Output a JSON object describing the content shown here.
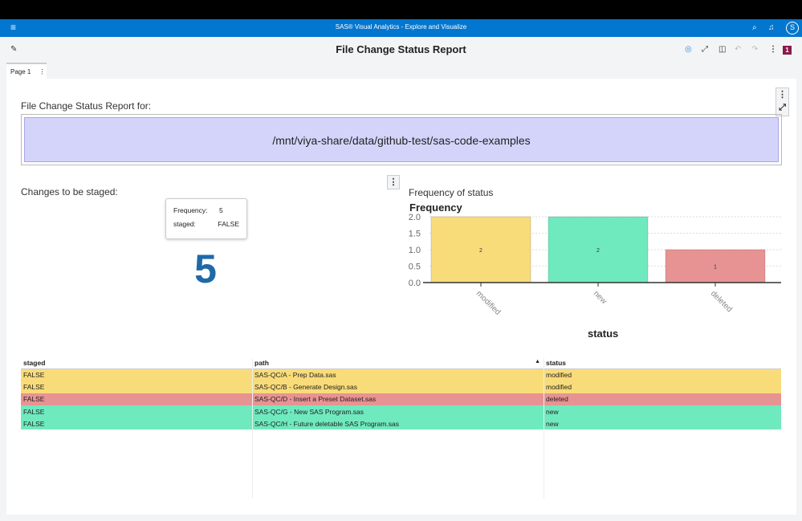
{
  "app": {
    "title": "SAS® Visual Analytics - Explore and Visualize",
    "avatar": "S",
    "menu_icon": "hamburger-icon",
    "search_icon": "search-icon",
    "bell_icon": "bell-icon"
  },
  "toolbar": {
    "title": "File Change Status Report",
    "badge": "1"
  },
  "tabs": [
    {
      "label": "Page 1"
    }
  ],
  "header_text": {
    "label": "File Change Status Report for:",
    "path": "/mnt/viya-share/data/github-test/sas-code-examples"
  },
  "kpi": {
    "title": "Changes to be staged:",
    "value": "5",
    "tooltip": {
      "rows": [
        {
          "key": "Frequency:",
          "value": "5"
        },
        {
          "key": "staged:",
          "value": "FALSE"
        }
      ]
    }
  },
  "chart_data": {
    "type": "bar",
    "title": "Frequency of status",
    "ylabel": "Frequency",
    "xlabel": "status",
    "categories": [
      "modified",
      "new",
      "deleted"
    ],
    "values": [
      2,
      2,
      1
    ],
    "ylim": [
      0,
      2
    ],
    "yticks": [
      "0.0",
      "0.5",
      "1.0",
      "1.5",
      "2.0"
    ],
    "grid": true,
    "colors": [
      "#f9dc7a",
      "#6feabf",
      "#e89393"
    ]
  },
  "table": {
    "columns": [
      "staged",
      "path",
      "status"
    ],
    "sort_indicator": "▲",
    "rows": [
      {
        "staged": "FALSE",
        "path": "SAS-QC/A - Prep Data.sas",
        "status": "modified",
        "color": "#f9dc7a"
      },
      {
        "staged": "FALSE",
        "path": "SAS-QC/B - Generate Design.sas",
        "status": "modified",
        "color": "#f9dc7a"
      },
      {
        "staged": "FALSE",
        "path": "SAS-QC/D - Insert a Preset Dataset.sas",
        "status": "deleted",
        "color": "#e89393"
      },
      {
        "staged": "FALSE",
        "path": "SAS-QC/G - New SAS Program.sas",
        "status": "new",
        "color": "#6feabf"
      },
      {
        "staged": "FALSE",
        "path": "SAS-QC/H - Future deletable SAS Program.sas",
        "status": "new",
        "color": "#6feabf"
      }
    ]
  }
}
